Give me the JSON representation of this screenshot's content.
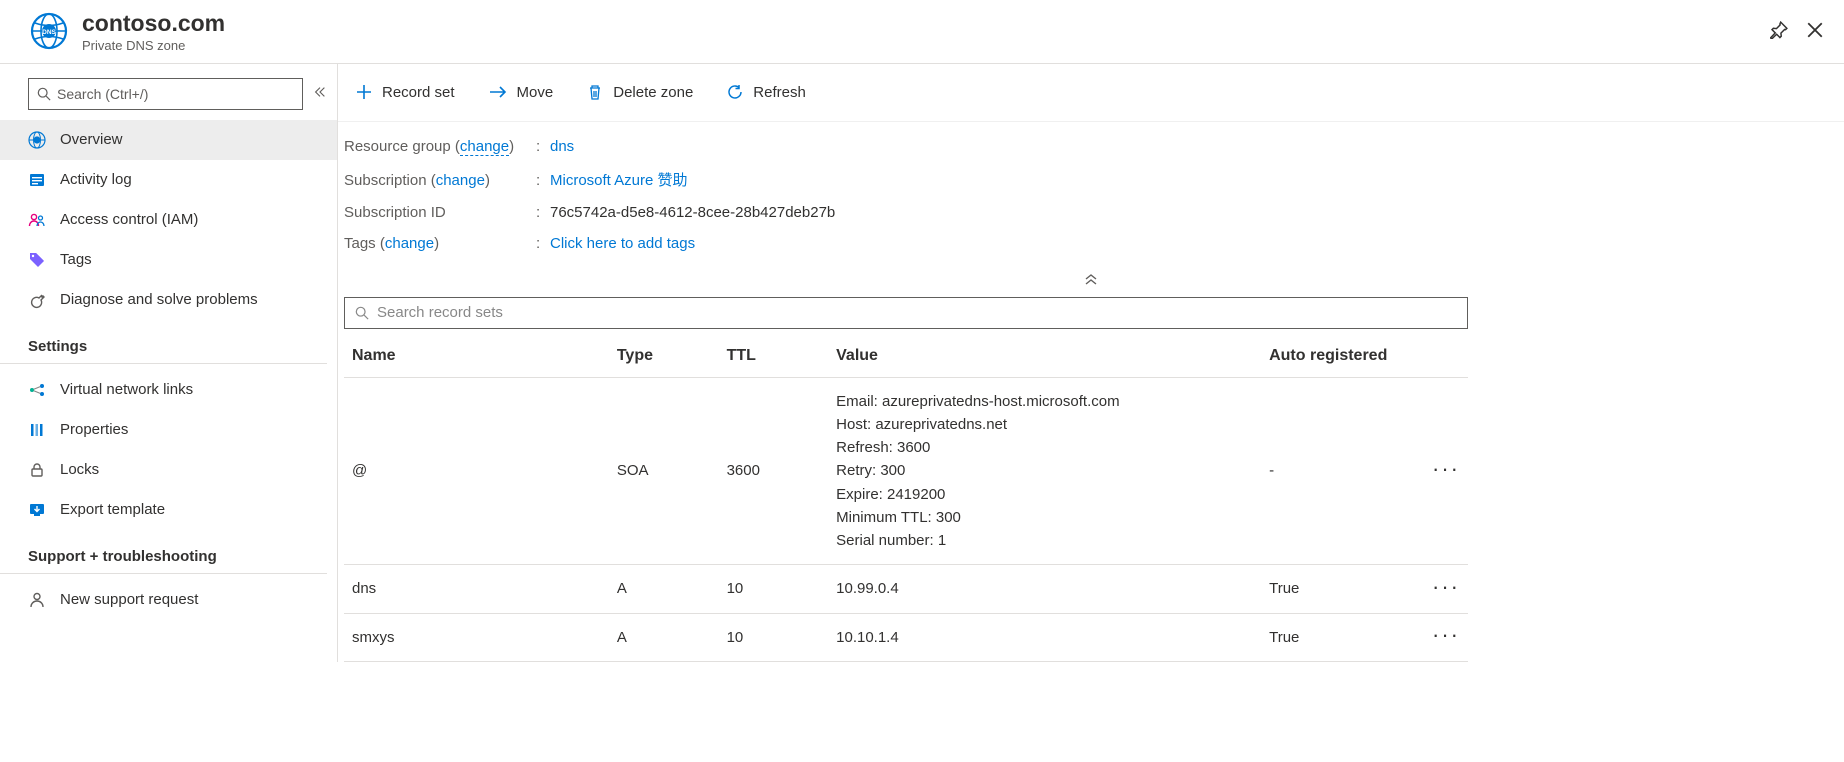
{
  "header": {
    "title": "contoso.com",
    "subtitle": "Private DNS zone"
  },
  "sidebar": {
    "search_placeholder": "Search (Ctrl+/)",
    "nav": [
      {
        "key": "overview",
        "label": "Overview",
        "active": true
      },
      {
        "key": "activity",
        "label": "Activity log"
      },
      {
        "key": "iam",
        "label": "Access control (IAM)"
      },
      {
        "key": "tags",
        "label": "Tags"
      },
      {
        "key": "diagnose",
        "label": "Diagnose and solve problems"
      }
    ],
    "settings_label": "Settings",
    "settings_items": [
      {
        "key": "vnet",
        "label": "Virtual network links"
      },
      {
        "key": "properties",
        "label": "Properties"
      },
      {
        "key": "locks",
        "label": "Locks"
      },
      {
        "key": "export",
        "label": "Export template"
      }
    ],
    "support_label": "Support + troubleshooting",
    "support_items": [
      {
        "key": "newreq",
        "label": "New support request"
      }
    ]
  },
  "toolbar": {
    "record_set": "Record set",
    "move": "Move",
    "delete_zone": "Delete zone",
    "refresh": "Refresh"
  },
  "properties": {
    "resource_group_label": "Resource group",
    "change_label": "change",
    "resource_group_value": "dns",
    "subscription_label": "Subscription",
    "subscription_value": "Microsoft Azure 赞助",
    "subscription_id_label": "Subscription ID",
    "subscription_id_value": "76c5742a-d5e8-4612-8cee-28b427deb27b",
    "tags_label": "Tags",
    "tags_value": "Click here to add tags"
  },
  "records": {
    "search_placeholder": "Search record sets",
    "columns": {
      "name": "Name",
      "type": "Type",
      "ttl": "TTL",
      "value": "Value",
      "auto": "Auto registered"
    },
    "rows": [
      {
        "name": "@",
        "type": "SOA",
        "ttl": "3600",
        "value_lines": [
          "Email: azureprivatedns-host.microsoft.com",
          "Host: azureprivatedns.net",
          "Refresh: 3600",
          "Retry: 300",
          "Expire: 2419200",
          "Minimum TTL: 300",
          "Serial number: 1"
        ],
        "auto": "-"
      },
      {
        "name": "dns",
        "type": "A",
        "ttl": "10",
        "value_lines": [
          "10.99.0.4"
        ],
        "auto": "True"
      },
      {
        "name": "smxys",
        "type": "A",
        "ttl": "10",
        "value_lines": [
          "10.10.1.4"
        ],
        "auto": "True"
      }
    ]
  },
  "colors": {
    "link": "#0078d4",
    "text": "#323130",
    "muted": "#605e5c",
    "border": "#e1dfdd",
    "active_bg": "#ededed"
  }
}
